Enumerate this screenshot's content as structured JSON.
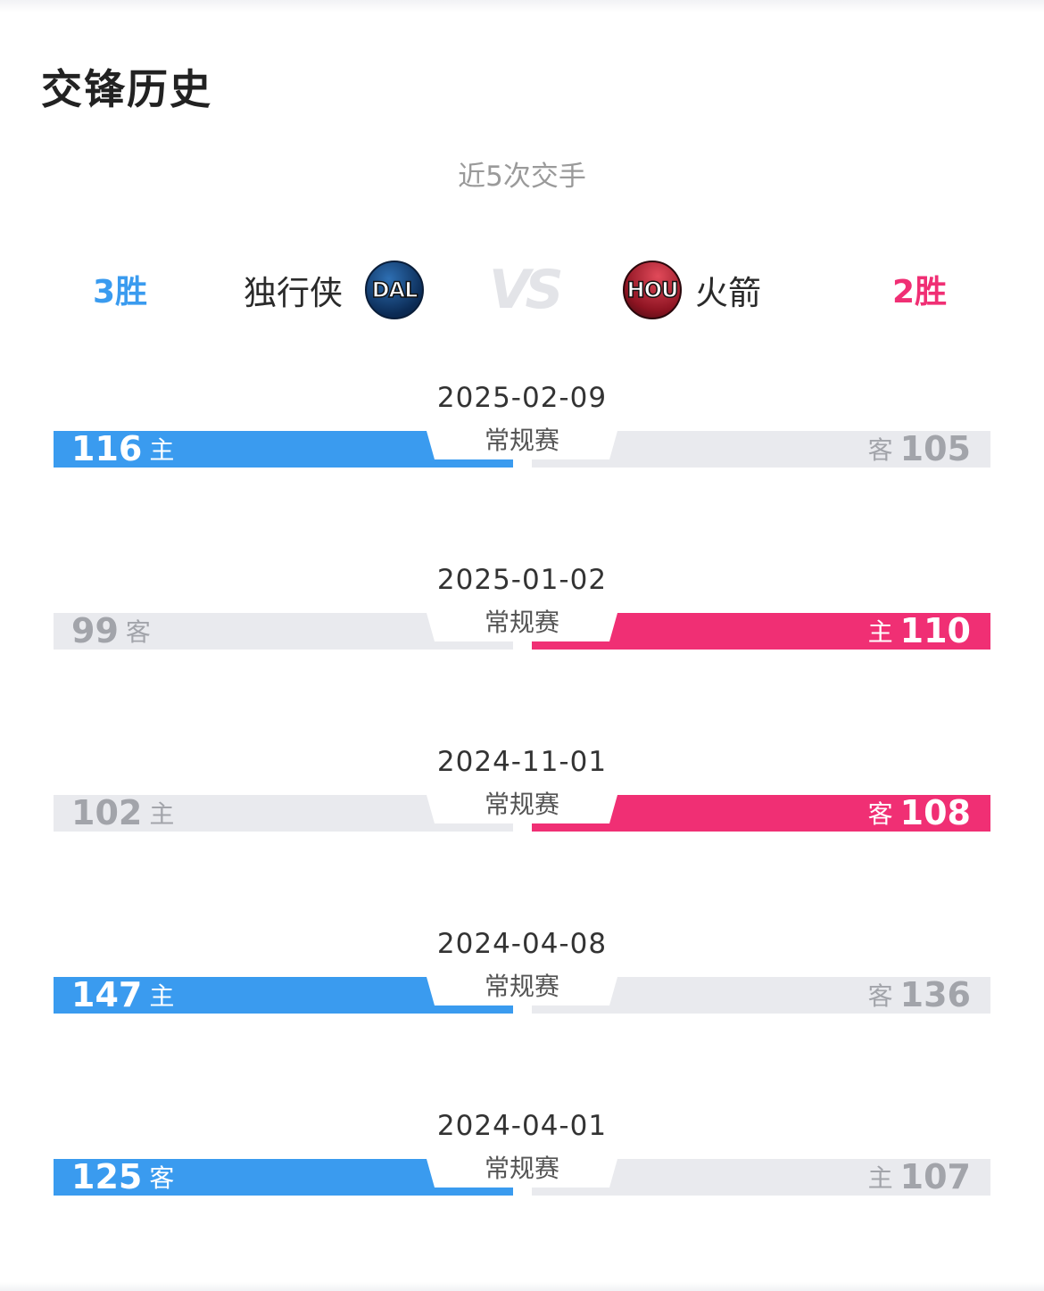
{
  "title": "交锋历史",
  "subtitle": "近5次交手",
  "colors": {
    "dal": "#3a9bef",
    "hou": "#f02f74",
    "neutral": "#e9eaee",
    "neutral_text": "#a2a4aa"
  },
  "teams": {
    "left": {
      "wins": "3胜",
      "name": "独行侠",
      "abbr": "DAL"
    },
    "vs": "VS",
    "right": {
      "abbr": "HOU",
      "name": "火箭",
      "wins": "2胜"
    }
  },
  "games": [
    {
      "date": "2025-02-09",
      "type": "常规赛",
      "winner": "left",
      "left": {
        "score": "116",
        "ha": "主"
      },
      "right": {
        "ha": "客",
        "score": "105"
      }
    },
    {
      "date": "2025-01-02",
      "type": "常规赛",
      "winner": "right",
      "left": {
        "score": "99",
        "ha": "客"
      },
      "right": {
        "ha": "主",
        "score": "110"
      }
    },
    {
      "date": "2024-11-01",
      "type": "常规赛",
      "winner": "right",
      "left": {
        "score": "102",
        "ha": "主"
      },
      "right": {
        "ha": "客",
        "score": "108"
      }
    },
    {
      "date": "2024-04-08",
      "type": "常规赛",
      "winner": "left",
      "left": {
        "score": "147",
        "ha": "主"
      },
      "right": {
        "ha": "客",
        "score": "136"
      }
    },
    {
      "date": "2024-04-01",
      "type": "常规赛",
      "winner": "left",
      "left": {
        "score": "125",
        "ha": "客"
      },
      "right": {
        "ha": "主",
        "score": "107"
      }
    }
  ]
}
